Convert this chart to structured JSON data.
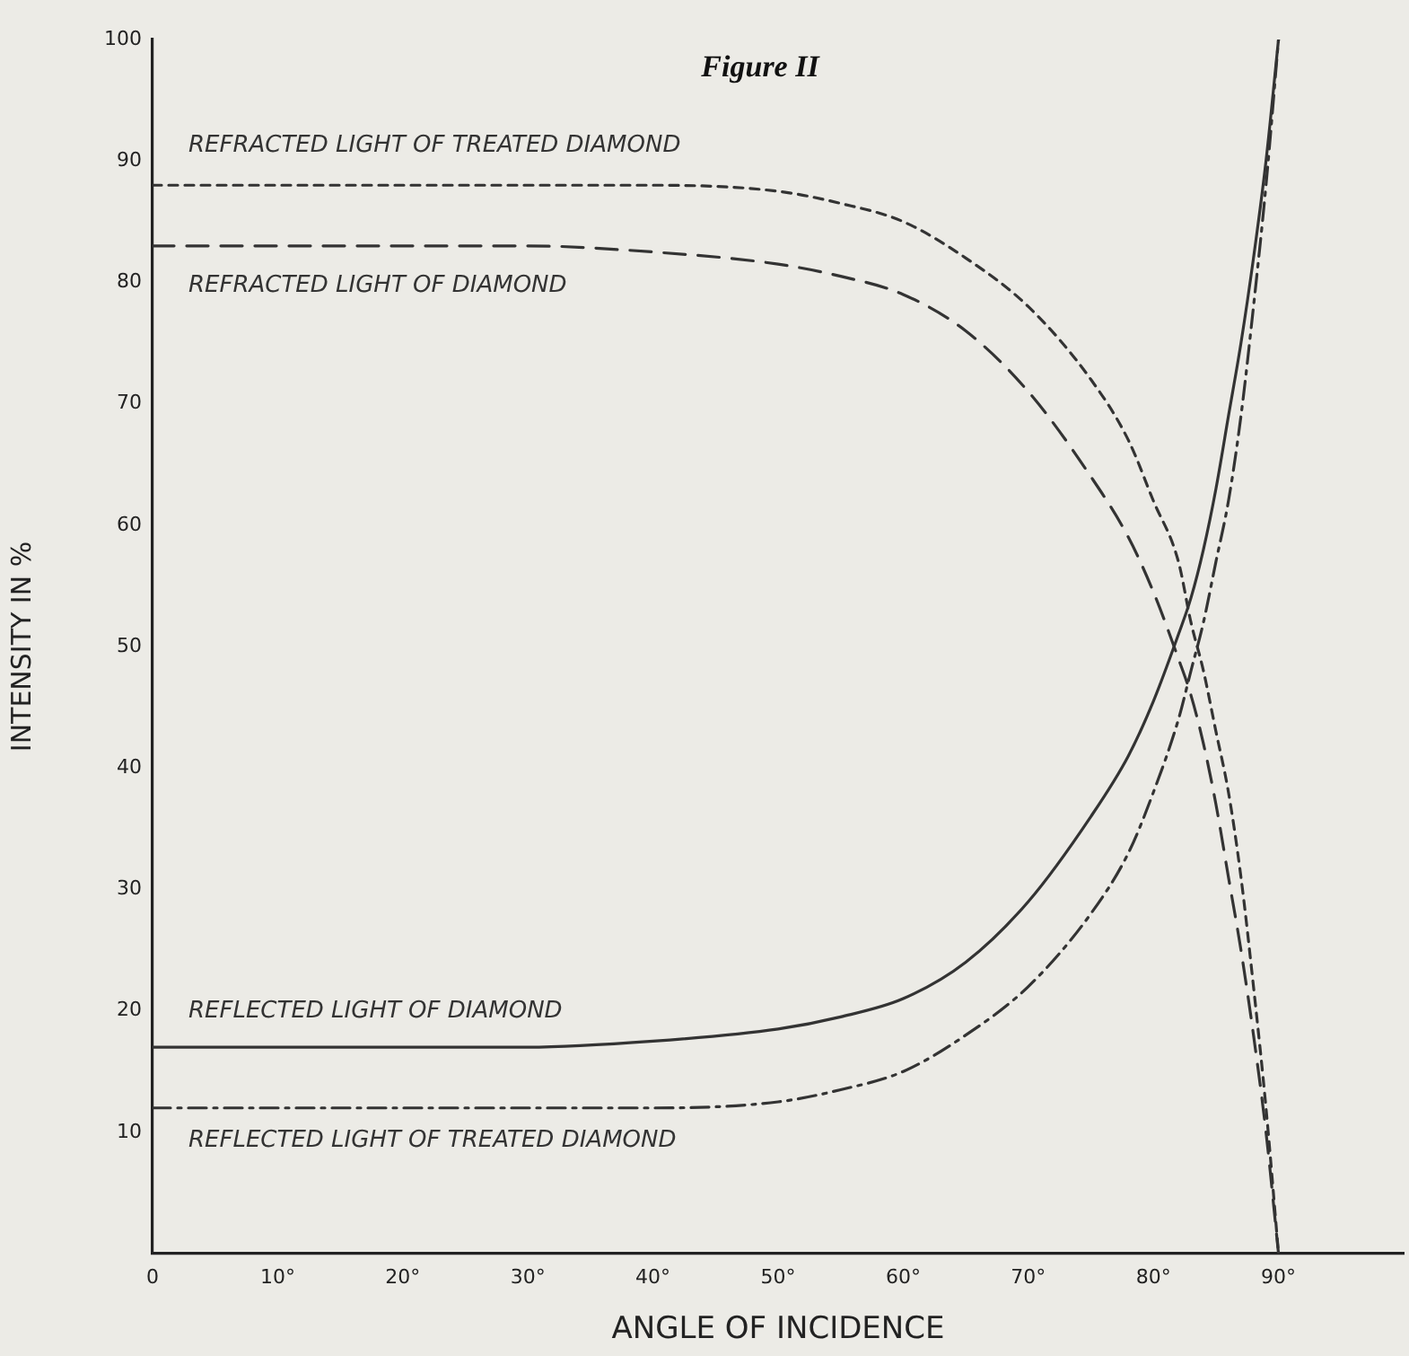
{
  "chart_data": {
    "type": "line",
    "title": "Figure II",
    "xlabel": "ANGLE OF INCIDENCE",
    "ylabel": "INTENSITY IN %",
    "x": [
      0,
      10,
      20,
      30,
      40,
      50,
      55,
      60,
      65,
      70,
      75,
      78,
      80,
      82,
      83,
      84,
      85,
      86,
      87,
      88,
      89,
      90
    ],
    "series": [
      {
        "name": "REFRACTED LIGHT OF TREATED DIAMOND",
        "color": "#333333",
        "line_style": "dotted",
        "values": [
          88,
          88,
          88,
          88,
          88,
          87.5,
          86.5,
          85,
          82,
          78,
          72,
          67,
          62,
          57,
          52,
          48,
          43,
          38,
          31,
          22,
          12,
          0
        ]
      },
      {
        "name": "REFRACTED LIGHT OF DIAMOND",
        "color": "#333333",
        "line_style": "dashed",
        "values": [
          83,
          83,
          83,
          83,
          82.5,
          81.5,
          80.5,
          79,
          76,
          71,
          64,
          59,
          54.5,
          49,
          46,
          42,
          37,
          31,
          25,
          18,
          10,
          0
        ]
      },
      {
        "name": "REFLECTED LIGHT OF DIAMOND",
        "color": "#333333",
        "line_style": "solid",
        "values": [
          17,
          17,
          17,
          17,
          17.5,
          18.5,
          19.5,
          21,
          24,
          29,
          36,
          41,
          45.5,
          51,
          54,
          58,
          63,
          69,
          75,
          82,
          90,
          100
        ]
      },
      {
        "name": "REFLECTED LIGHT OF TREATED DIAMOND",
        "color": "#333333",
        "line_style": "dashdot",
        "values": [
          12,
          12,
          12,
          12,
          12,
          12.5,
          13.5,
          15,
          18,
          22,
          28,
          33,
          38,
          44,
          48,
          52,
          57,
          62,
          69,
          78,
          88,
          100
        ]
      }
    ],
    "xlim": [
      0,
      100
    ],
    "xticks": [
      0,
      {
        "value": 10,
        "label": "10°"
      },
      {
        "value": 20,
        "label": "20°"
      },
      {
        "value": 30,
        "label": "30°"
      },
      {
        "value": 40,
        "label": "40°"
      },
      {
        "value": 50,
        "label": "50°"
      },
      {
        "value": 60,
        "label": "60°"
      },
      {
        "value": 70,
        "label": "70°"
      },
      {
        "value": 80,
        "label": "80°"
      },
      {
        "value": 90,
        "label": "90°"
      }
    ],
    "ylim": [
      0,
      100
    ],
    "yticks": [
      10,
      20,
      30,
      40,
      50,
      60,
      70,
      80,
      90,
      100
    ],
    "grid": false,
    "legend": false,
    "marker": "none"
  }
}
